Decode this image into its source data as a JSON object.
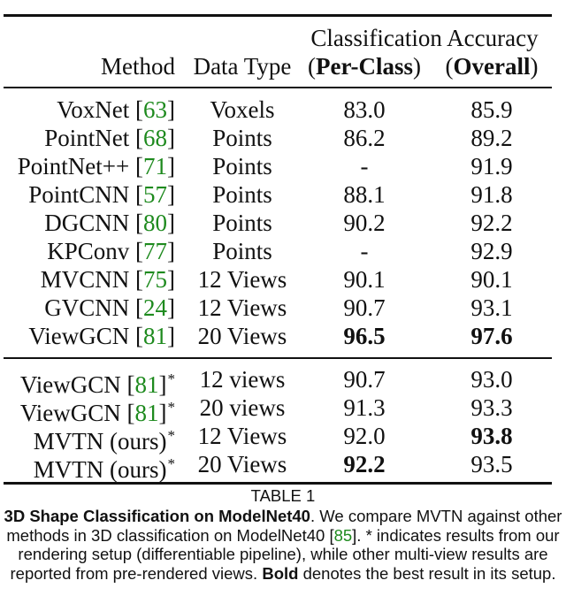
{
  "header": {
    "group_label": "Classification Accuracy",
    "method": "Method",
    "data_type": "Data Type",
    "per_class_open": "(",
    "per_class": "Per-Class",
    "per_class_close": ")",
    "overall_open": "(",
    "overall": "Overall",
    "overall_close": ")"
  },
  "rows": [
    {
      "method": "VoxNet",
      "ref": "63",
      "type": "Voxels",
      "per_class": "83.0",
      "overall": "85.9"
    },
    {
      "method": "PointNet",
      "ref": "68",
      "type": "Points",
      "per_class": "86.2",
      "overall": "89.2"
    },
    {
      "method": "PointNet++",
      "ref": "71",
      "type": "Points",
      "per_class": "-",
      "overall": "91.9"
    },
    {
      "method": "PointCNN",
      "ref": "57",
      "type": "Points",
      "per_class": "88.1",
      "overall": "91.8"
    },
    {
      "method": "DGCNN",
      "ref": "80",
      "type": "Points",
      "per_class": "90.2",
      "overall": "92.2"
    },
    {
      "method": "KPConv",
      "ref": "77",
      "type": "Points",
      "per_class": "-",
      "overall": "92.9"
    },
    {
      "method": "MVCNN",
      "ref": "75",
      "type": "12 Views",
      "per_class": "90.1",
      "overall": "90.1"
    },
    {
      "method": "GVCNN",
      "ref": "24",
      "type": "12 Views",
      "per_class": "90.7",
      "overall": "93.1"
    },
    {
      "method": "ViewGCN",
      "ref": "81",
      "type": "20 Views",
      "per_class": "96.5",
      "overall": "97.6"
    },
    {
      "method": "ViewGCN",
      "ref": "81",
      "star": "*",
      "type": "12 views",
      "per_class": "90.7",
      "overall": "93.0"
    },
    {
      "method": "ViewGCN",
      "ref": "81",
      "star": "*",
      "type": "20 views",
      "per_class": "91.3",
      "overall": "93.3"
    },
    {
      "method": "MVTN (ours)",
      "star": "*",
      "type": "12 Views",
      "per_class": "92.0",
      "overall": "93.8"
    },
    {
      "method": "MVTN (ours)",
      "star": "*",
      "type": "20 Views",
      "per_class": "92.2",
      "overall": "93.5"
    }
  ],
  "bold": {
    "8": [
      "per_class",
      "overall"
    ],
    "11": [
      "overall"
    ],
    "12": [
      "per_class"
    ]
  },
  "caption": {
    "label": "TABLE 1",
    "title": "3D Shape Classification on ModelNet40",
    "body_1": ". We compare MVTN against other methods in 3D classification on ModelNet40 [",
    "ref_1": "85",
    "body_2": "]. * indicates results from our rendering setup (differentiable pipeline), while other multi-view results are reported from pre-rendered views. ",
    "bold_word": "Bold",
    "body_3": " denotes the best result in its setup."
  },
  "colors": {
    "ref": "#1e8a1e",
    "text": "#111111"
  }
}
